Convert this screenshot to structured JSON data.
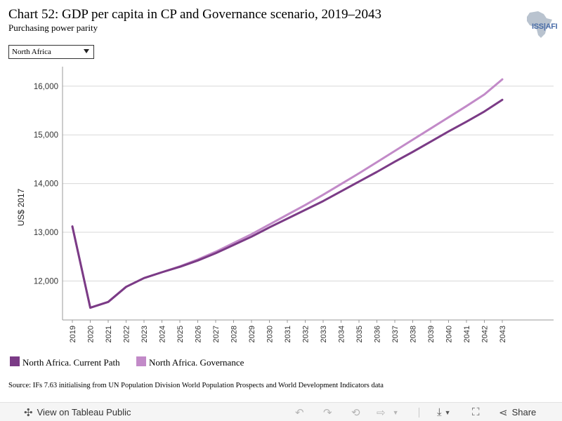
{
  "header": {
    "title": "Chart 52: GDP per capita in CP and Governance scenario, 2019–2043",
    "subtitle": "Purchasing power parity",
    "logo_text": "ISS|AFI"
  },
  "filter": {
    "selected": "North Africa"
  },
  "chart_data": {
    "type": "line",
    "title": "Chart 52: GDP per capita in CP and Governance scenario, 2019–2043",
    "subtitle": "Purchasing power parity",
    "xlabel": "",
    "ylabel": "US$ 2017",
    "x": [
      2019,
      2020,
      2021,
      2022,
      2023,
      2024,
      2025,
      2026,
      2027,
      2028,
      2029,
      2030,
      2031,
      2032,
      2033,
      2034,
      2035,
      2036,
      2037,
      2038,
      2039,
      2040,
      2041,
      2042,
      2043
    ],
    "ylim": [
      11200,
      16400
    ],
    "yticks": [
      12000,
      13000,
      14000,
      15000,
      16000
    ],
    "ytick_labels": [
      "12,000",
      "13,000",
      "14,000",
      "15,000",
      "16,000"
    ],
    "grid": true,
    "legend_position": "bottom-left",
    "series": [
      {
        "name": "North Africa. Current Path",
        "color": "#7b3b86",
        "values": [
          13120,
          11450,
          11570,
          11880,
          12060,
          12180,
          12290,
          12420,
          12570,
          12740,
          12910,
          13100,
          13280,
          13460,
          13640,
          13840,
          14040,
          14240,
          14450,
          14650,
          14860,
          15070,
          15270,
          15480,
          15720
        ]
      },
      {
        "name": "North Africa. Governance",
        "color": "#c28ac8",
        "values": [
          13120,
          11450,
          11570,
          11880,
          12060,
          12180,
          12300,
          12440,
          12600,
          12780,
          12960,
          13160,
          13360,
          13560,
          13770,
          13990,
          14210,
          14440,
          14670,
          14900,
          15130,
          15360,
          15590,
          15830,
          16140
        ]
      }
    ]
  },
  "source": "Source: IFs 7.63 initialising from UN Population Division World Population Prospects and World Development Indicators data",
  "footer": {
    "view_label": "View on Tableau Public",
    "share_label": "Share"
  }
}
